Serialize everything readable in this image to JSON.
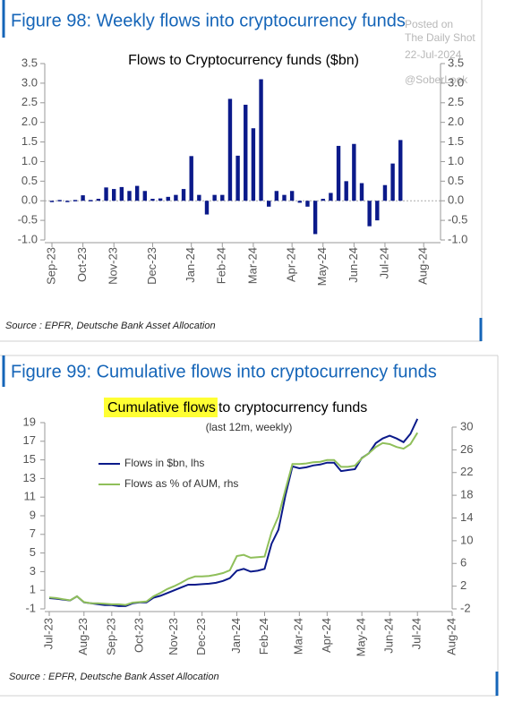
{
  "watermark": [
    "Posted on",
    "The Daily Shot",
    "22-Jul-2024",
    "@SoberLook"
  ],
  "chart_data": [
    {
      "type": "bar",
      "figure_title": "Figure 98: Weekly flows into cryptocurrency funds",
      "title": "Flows to Cryptocurrency funds ($bn)",
      "categories": [
        "Sep-23",
        null,
        null,
        null,
        "Oct-23",
        null,
        null,
        null,
        "Nov-23",
        null,
        null,
        null,
        null,
        "Dec-23",
        null,
        null,
        null,
        null,
        "Jan-24",
        null,
        null,
        null,
        "Feb-24",
        null,
        null,
        null,
        "Mar-24",
        null,
        null,
        null,
        null,
        "Apr-24",
        null,
        null,
        null,
        "May-24",
        null,
        null,
        null,
        "Jun-24",
        null,
        null,
        null,
        "Jul-24",
        null,
        null,
        null,
        null,
        "Aug-24",
        null
      ],
      "values": [
        -0.02,
        0.02,
        -0.02,
        0.02,
        0.14,
        0.02,
        0.05,
        0.34,
        0.3,
        0.35,
        0.25,
        0.38,
        0.25,
        0.05,
        0.06,
        0.1,
        0.15,
        0.3,
        1.14,
        0.15,
        -0.35,
        0.15,
        0.15,
        2.6,
        1.15,
        2.45,
        1.85,
        3.1,
        -0.15,
        0.25,
        0.15,
        0.25,
        -0.05,
        -0.15,
        -0.85,
        0.05,
        0.2,
        1.4,
        0.5,
        1.45,
        0.45,
        -0.65,
        -0.5,
        0.4,
        0.95,
        1.55,
        null,
        null,
        null,
        null
      ],
      "color": "#0b1a8a",
      "ylim": [
        -1,
        3.5
      ],
      "yticks": [
        {
          "value": -1,
          "label": "-1.0"
        },
        -0.5,
        {
          "value": 0,
          "label": "0.0"
        },
        0.5,
        {
          "value": 1,
          "label": "1.0"
        },
        1.5,
        {
          "value": 2,
          "label": "2.0"
        },
        2.5,
        {
          "value": 3,
          "label": "3.0"
        },
        3.5
      ],
      "y2lim": [
        -1,
        3.5
      ],
      "y2ticks": [
        {
          "value": -1,
          "label": "-1.0"
        },
        -0.5,
        {
          "value": 0,
          "label": "0.0"
        },
        0.5,
        {
          "value": 1,
          "label": "1.0"
        },
        1.5,
        {
          "value": 2,
          "label": "2.0"
        },
        2.5,
        {
          "value": 3,
          "label": "3.0"
        },
        3.5
      ],
      "zero_line": true,
      "source": "Source : EPFR, Deutsche Bank Asset Allocation"
    },
    {
      "type": "line",
      "figure_title": "Figure 99: Cumulative flows into cryptocurrency funds",
      "title_highlight": "Cumulative flows",
      "title": "to cryptocurrency funds",
      "subtitle": "(last 12m, weekly)",
      "categories": [
        "Jul-23",
        null,
        null,
        null,
        null,
        "Aug-23",
        null,
        null,
        null,
        "Sep-23",
        null,
        null,
        null,
        "Oct-23",
        null,
        null,
        null,
        null,
        "Nov-23",
        null,
        null,
        null,
        "Dec-23",
        null,
        null,
        null,
        null,
        "Jan-24",
        null,
        null,
        null,
        "Feb-24",
        null,
        null,
        null,
        null,
        "Mar-24",
        null,
        null,
        null,
        "Apr-24",
        null,
        null,
        null,
        null,
        "May-24",
        null,
        null,
        null,
        "Jun-24",
        null,
        null,
        null,
        "Jul-24",
        null,
        null,
        null,
        null,
        "Aug-24"
      ],
      "series": [
        {
          "name": "Flows in $bn, lhs",
          "color": "#0b1a8a",
          "values": [
            0.15,
            0.1,
            0.0,
            -0.1,
            0.35,
            -0.3,
            -0.4,
            -0.5,
            -0.6,
            -0.6,
            -0.7,
            -0.7,
            -0.4,
            -0.3,
            -0.3,
            0.2,
            0.4,
            0.7,
            1.0,
            1.3,
            1.6,
            1.6,
            1.65,
            1.7,
            1.8,
            2.0,
            2.3,
            3.1,
            3.3,
            3.0,
            3.1,
            3.3,
            6.0,
            7.5,
            11.2,
            14.3,
            14.1,
            14.2,
            14.4,
            14.5,
            14.7,
            14.7,
            13.8,
            13.9,
            14.0,
            15.2,
            15.7,
            16.8,
            17.3,
            17.6,
            17.3,
            16.9,
            17.8,
            19.4,
            null,
            null,
            null,
            null,
            null
          ]
        },
        {
          "name": "Flows as % of AUM, rhs",
          "color": "#8fbf5a",
          "axis": "y2",
          "values": [
            0.0,
            -0.1,
            -0.3,
            -0.5,
            0.2,
            -0.8,
            -1.0,
            -1.0,
            -1.1,
            -1.2,
            -1.2,
            -1.3,
            -0.9,
            -0.8,
            -0.7,
            0.2,
            0.8,
            1.5,
            2.0,
            2.6,
            3.3,
            3.7,
            3.7,
            3.8,
            4.0,
            4.3,
            4.8,
            7.3,
            7.5,
            7.0,
            7.1,
            7.2,
            11.5,
            14.3,
            19.0,
            23.5,
            23.5,
            23.6,
            23.8,
            23.9,
            24.2,
            24.2,
            23.0,
            23.0,
            23.2,
            24.5,
            25.4,
            26.5,
            27.2,
            27.0,
            26.5,
            26.2,
            27.0,
            29.0,
            null,
            null,
            null,
            null,
            null
          ]
        }
      ],
      "ylim": [
        -1,
        19
      ],
      "yticks": [
        -1,
        1,
        3,
        5,
        7,
        9,
        11,
        13,
        15,
        17,
        19
      ],
      "y2lim": [
        -2,
        30
      ],
      "y2ticks": [
        -2,
        2,
        6,
        10,
        14,
        18,
        22,
        26,
        30
      ],
      "legend": "upper left",
      "source": "Source : EPFR, Deutsche Bank Asset Allocation"
    }
  ]
}
